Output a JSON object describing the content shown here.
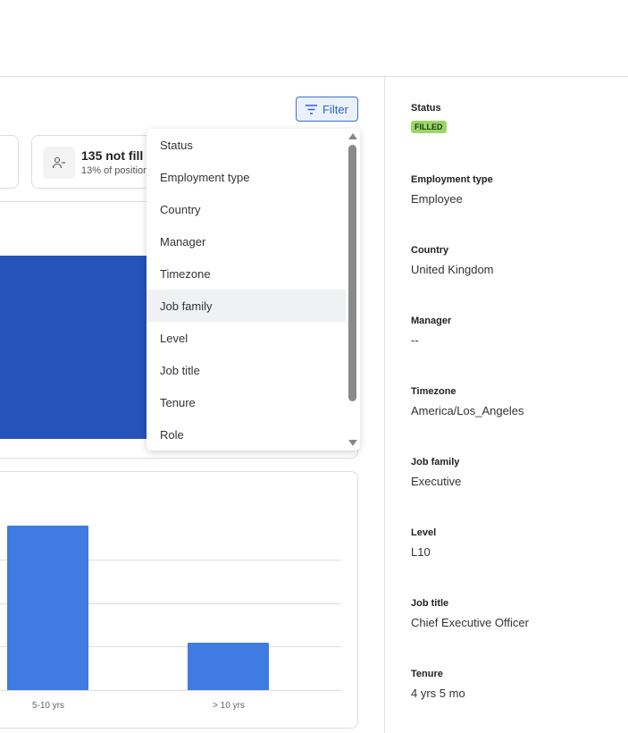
{
  "toolbar": {
    "filter_label": "Filter"
  },
  "stat": {
    "title": "135 not fill",
    "subtitle": "13% of position"
  },
  "filter_menu": {
    "items": [
      "Status",
      "Employment type",
      "Country",
      "Manager",
      "Timezone",
      "Job family",
      "Level",
      "Job title",
      "Tenure",
      "Role"
    ],
    "hovered": "Job family"
  },
  "chart_data": {
    "type": "bar",
    "categories": [
      "5-10 yrs",
      "> 10 yrs"
    ],
    "values": [
      3.8,
      1.1
    ],
    "color": "#3f7be0",
    "grid": true
  },
  "details": {
    "status": {
      "label": "Status",
      "value": "FILLED",
      "color": "#9bd66a"
    },
    "fields": [
      {
        "label": "Employment type",
        "value": "Employee"
      },
      {
        "label": "Country",
        "value": "United Kingdom"
      },
      {
        "label": "Manager",
        "value": "--"
      },
      {
        "label": "Timezone",
        "value": "America/Los_Angeles"
      },
      {
        "label": "Job family",
        "value": "Executive"
      },
      {
        "label": "Level",
        "value": "L10"
      },
      {
        "label": "Job title",
        "value": "Chief Executive Officer"
      },
      {
        "label": "Tenure",
        "value": "4 yrs 5 mo"
      }
    ]
  }
}
